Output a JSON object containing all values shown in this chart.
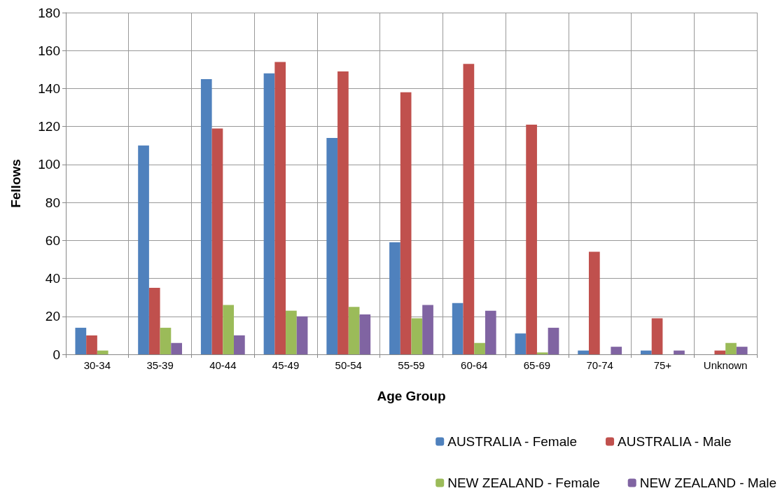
{
  "chart_data": {
    "type": "bar",
    "xlabel": "Age Group",
    "ylabel": "Fellows",
    "categories": [
      "30-34",
      "35-39",
      "40-44",
      "45-49",
      "50-54",
      "55-59",
      "60-64",
      "65-69",
      "70-74",
      "75+",
      "Unknown"
    ],
    "series": [
      {
        "name": "AUSTRALIA - Female",
        "color": "#4f81bd",
        "values": [
          14,
          110,
          145,
          148,
          114,
          59,
          27,
          11,
          2,
          2,
          0
        ]
      },
      {
        "name": "AUSTRALIA - Male",
        "color": "#c0504d",
        "values": [
          10,
          35,
          119,
          154,
          149,
          138,
          153,
          121,
          54,
          19,
          2
        ]
      },
      {
        "name": "NEW ZEALAND - Female",
        "color": "#9bbb59",
        "values": [
          2,
          14,
          26,
          23,
          25,
          19,
          6,
          1,
          0,
          0,
          6
        ]
      },
      {
        "name": "NEW ZEALAND - Male",
        "color": "#8064a2",
        "values": [
          0,
          6,
          10,
          20,
          21,
          26,
          23,
          14,
          4,
          2,
          4
        ]
      }
    ],
    "ylim": [
      0,
      180
    ],
    "yticks": [
      0,
      20,
      40,
      60,
      80,
      100,
      120,
      140,
      160,
      180
    ],
    "grid": true,
    "legend": "bottom right"
  }
}
